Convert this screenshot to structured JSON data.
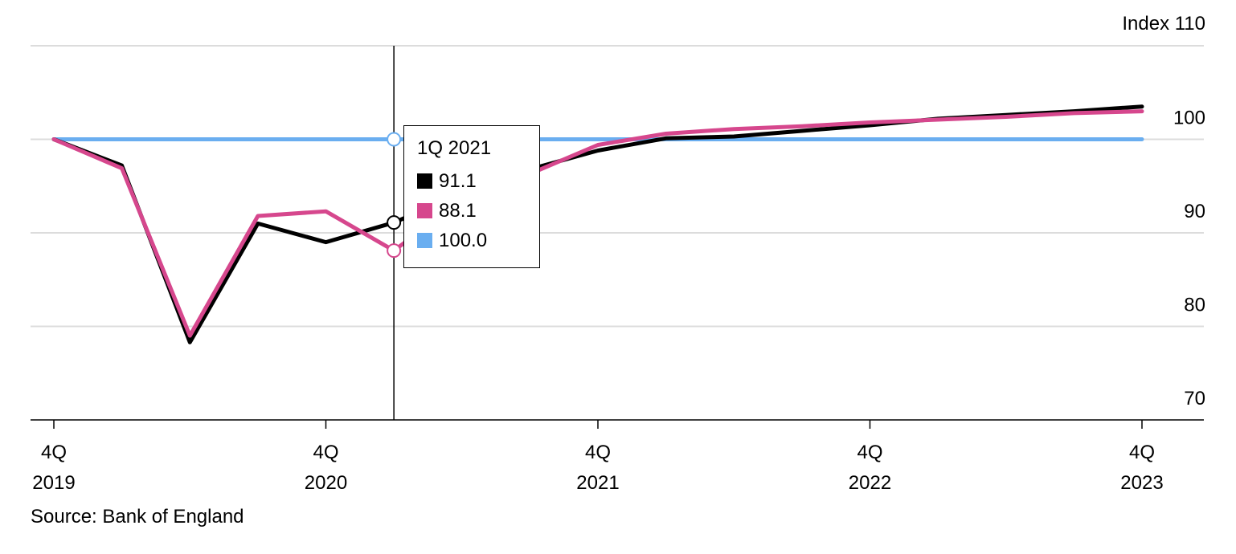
{
  "chart_data": {
    "type": "line",
    "unit_label": "Index",
    "y_ticks": [
      70,
      80,
      90,
      100,
      110
    ],
    "ylim": [
      70,
      110
    ],
    "x_ticks": [
      {
        "line1": "4Q",
        "line2": "2019",
        "index": 0
      },
      {
        "line1": "4Q",
        "line2": "2020",
        "index": 4
      },
      {
        "line1": "4Q",
        "line2": "2021",
        "index": 8
      },
      {
        "line1": "4Q",
        "line2": "2022",
        "index": 12
      },
      {
        "line1": "4Q",
        "line2": "2023",
        "index": 16
      }
    ],
    "x": [
      "4Q 2019",
      "1Q 2020",
      "2Q 2020",
      "3Q 2020",
      "4Q 2020",
      "1Q 2021",
      "2Q 2021",
      "3Q 2021",
      "4Q 2021",
      "1Q 2022",
      "2Q 2022",
      "3Q 2022",
      "4Q 2022",
      "1Q 2023",
      "2Q 2023",
      "3Q 2023",
      "4Q 2023"
    ],
    "series": [
      {
        "color": "#000000",
        "values": [
          100,
          97.2,
          78.3,
          91.0,
          89.0,
          91.1,
          94.2,
          96.8,
          98.8,
          100.1,
          100.3,
          100.9,
          101.5,
          102.2,
          102.6,
          103.0,
          103.5
        ]
      },
      {
        "color": "#d6478d",
        "values": [
          100,
          96.9,
          79.0,
          91.8,
          92.3,
          88.1,
          93.5,
          96.3,
          99.4,
          100.6,
          101.1,
          101.4,
          101.8,
          102.1,
          102.4,
          102.8,
          103.0
        ]
      },
      {
        "color": "#6aaef0",
        "values": [
          100,
          100,
          100,
          100,
          100,
          100,
          100,
          100,
          100,
          100,
          100,
          100,
          100,
          100,
          100,
          100,
          100
        ]
      }
    ],
    "grid": true,
    "hover_index": 5,
    "tooltip": {
      "title": "1Q 2021",
      "rows": [
        {
          "value": "91.1",
          "color": "#000000"
        },
        {
          "value": "88.1",
          "color": "#d6478d"
        },
        {
          "value": "100.0",
          "color": "#6aaef0"
        }
      ]
    }
  },
  "source": "Source: Bank of England"
}
